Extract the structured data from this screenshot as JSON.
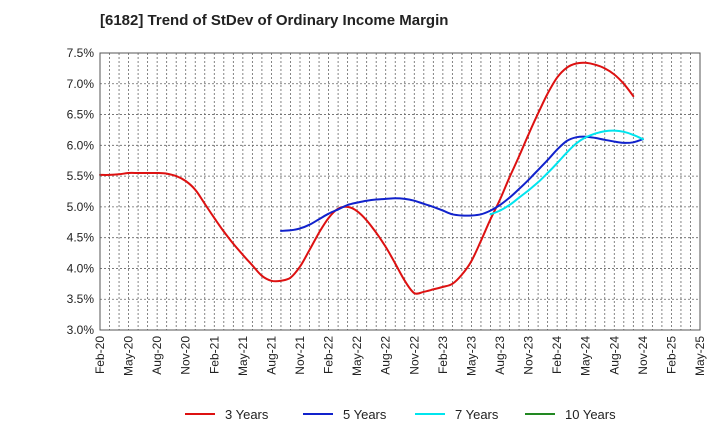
{
  "chart_data": {
    "type": "line",
    "title": "[6182]  Trend of StDev of Ordinary Income Margin",
    "xlabel": "",
    "ylabel": "",
    "x_ticks": [
      "Feb-20",
      "May-20",
      "Aug-20",
      "Nov-20",
      "Feb-21",
      "May-21",
      "Aug-21",
      "Nov-21",
      "Feb-22",
      "May-22",
      "Aug-22",
      "Nov-22",
      "Feb-23",
      "May-23",
      "Aug-23",
      "Nov-23",
      "Feb-24",
      "May-24",
      "Aug-24",
      "Nov-24",
      "Feb-25",
      "May-25"
    ],
    "y_ticks": [
      "3.0%",
      "3.5%",
      "4.0%",
      "4.5%",
      "5.0%",
      "5.5%",
      "6.0%",
      "6.5%",
      "7.0%",
      "7.5%"
    ],
    "ylim": [
      3.0,
      7.5
    ],
    "y_unit": "%",
    "grid": true,
    "legend_position": "bottom",
    "series": [
      {
        "name": "3 Years",
        "color": "#dd1111",
        "start_index": 0,
        "values": [
          5.52,
          5.52,
          5.53,
          5.55,
          5.55,
          5.55,
          5.55,
          5.54,
          5.5,
          5.42,
          5.28,
          5.05,
          4.82,
          4.6,
          4.4,
          4.22,
          4.05,
          3.88,
          3.8,
          3.8,
          3.85,
          4.03,
          4.3,
          4.58,
          4.82,
          4.97,
          5.0,
          4.93,
          4.78,
          4.58,
          4.35,
          4.08,
          3.8,
          3.6,
          3.62,
          3.66,
          3.7,
          3.75,
          3.9,
          4.12,
          4.45,
          4.8,
          5.12,
          5.48,
          5.82,
          6.18,
          6.52,
          6.84,
          7.1,
          7.26,
          7.33,
          7.34,
          7.31,
          7.25,
          7.15,
          7.0,
          6.8
        ]
      },
      {
        "name": "5 Years",
        "color": "#1122cc",
        "start_index": 19,
        "values": [
          4.61,
          4.62,
          4.65,
          4.71,
          4.8,
          4.89,
          4.96,
          5.03,
          5.07,
          5.1,
          5.12,
          5.13,
          5.14,
          5.13,
          5.1,
          5.05,
          5.0,
          4.94,
          4.88,
          4.86,
          4.86,
          4.88,
          4.94,
          5.03,
          5.15,
          5.29,
          5.44,
          5.6,
          5.76,
          5.93,
          6.07,
          6.13,
          6.14,
          6.12,
          6.09,
          6.06,
          6.04,
          6.05,
          6.1
        ]
      },
      {
        "name": "7 Years",
        "color": "#00e5ee",
        "start_index": 41,
        "values": [
          4.88,
          4.94,
          5.03,
          5.15,
          5.27,
          5.4,
          5.55,
          5.71,
          5.88,
          6.03,
          6.13,
          6.19,
          6.23,
          6.24,
          6.22,
          6.17,
          6.1
        ]
      },
      {
        "name": "10 Years",
        "color": "#228822",
        "start_index": 0,
        "values": []
      }
    ]
  }
}
